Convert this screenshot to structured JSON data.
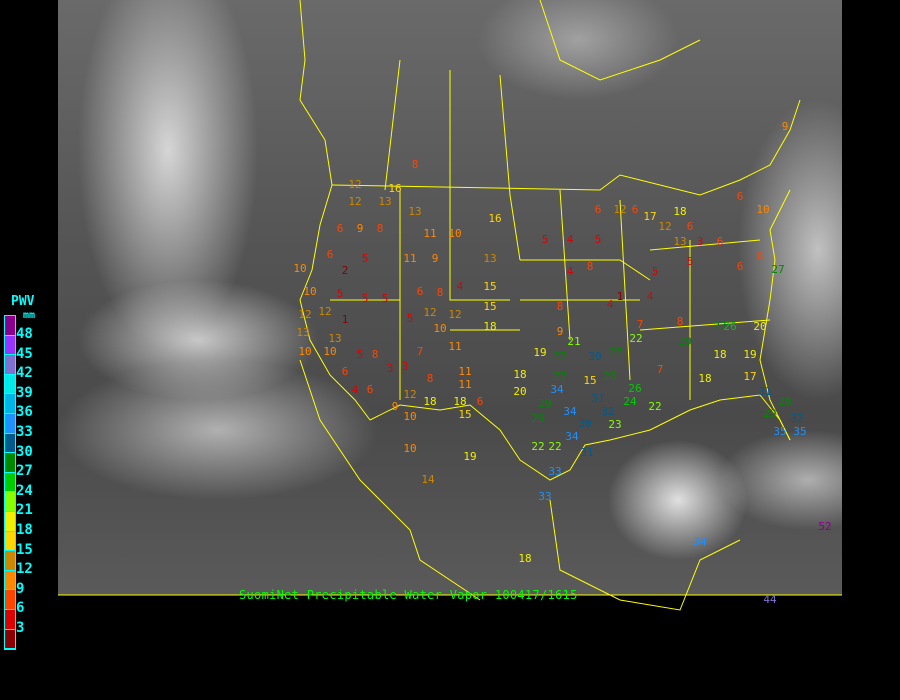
{
  "caption": "SuomiNet Precipitable Water Vapor 100417/1615",
  "legend": {
    "title": "PWV",
    "unit": "mm",
    "labels": [
      "48",
      "45",
      "42",
      "39",
      "36",
      "33",
      "30",
      "27",
      "24",
      "21",
      "18",
      "15",
      "12",
      "9",
      "6",
      "3"
    ],
    "colors": [
      "#8b008b",
      "#9933ff",
      "#8070d0",
      "#00e8e8",
      "#00b4e6",
      "#1e90ff",
      "#005a8c",
      "#008800",
      "#00cc00",
      "#88ff00",
      "#f0f000",
      "#ffd700",
      "#cc8800",
      "#ff8800",
      "#ff4400",
      "#dd0000",
      "#8b0000"
    ]
  },
  "boundary_color": "#ffff00",
  "stations": [
    8,
    12,
    16,
    13,
    12,
    13,
    6,
    9,
    8,
    11,
    10,
    16,
    5,
    4,
    5,
    6,
    6,
    12,
    6,
    10,
    6,
    2,
    5,
    11,
    9,
    13,
    10,
    5,
    5,
    5,
    6,
    8,
    4,
    15,
    12,
    12,
    1,
    5,
    12,
    12,
    15,
    18,
    10,
    13,
    13,
    11,
    10,
    10,
    5,
    8,
    7,
    6,
    3,
    3,
    8,
    11,
    11,
    4,
    6,
    12,
    18,
    18,
    6,
    9,
    10,
    15,
    10,
    14,
    19,
    18,
    20,
    19,
    27,
    21,
    27,
    34,
    29,
    29,
    15,
    30,
    28,
    31,
    32,
    30,
    34,
    23,
    24,
    26,
    27,
    22,
    22,
    22,
    22,
    34,
    31,
    33,
    33,
    18,
    12,
    17,
    18,
    13,
    3,
    6,
    6,
    6,
    27,
    10,
    9,
    6,
    26,
    20,
    18,
    19,
    18,
    17,
    31,
    29,
    29,
    35,
    35,
    32,
    29,
    27,
    7,
    8,
    7,
    4,
    4,
    4,
    9,
    34,
    52,
    44,
    8,
    5,
    5,
    8,
    1
  ]
}
